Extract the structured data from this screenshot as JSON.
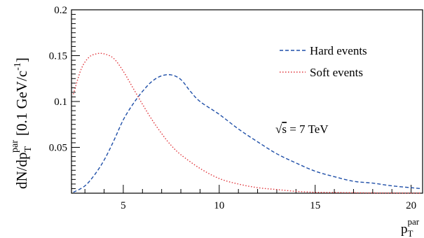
{
  "chart_data": {
    "type": "line",
    "title": "",
    "xlabel": {
      "main": "p",
      "sub": "T",
      "sup": "par"
    },
    "ylabel": {
      "prefix": "dN/dp",
      "sub": "T",
      "sup": "par",
      "units": "[0.1 GeV/c",
      "units_exp": "-1",
      "units_close": "]"
    },
    "xlim": [
      2.3,
      20.6
    ],
    "ylim": [
      0,
      0.2
    ],
    "x_ticks": [
      5,
      10,
      15,
      20
    ],
    "x_tick_labels": [
      "5",
      "10",
      "15",
      "20"
    ],
    "y_ticks": [
      0.05,
      0.1,
      0.15,
      0.2
    ],
    "y_tick_labels": [
      "0.05",
      "0.1",
      "0.15",
      "0.2"
    ],
    "grid": false,
    "legend_position": "top-right",
    "annotation": {
      "root": "√",
      "radicand": "s",
      "rest": " = 7 TeV"
    },
    "series": [
      {
        "name": "Hard events",
        "color": "#1f4fa8",
        "dash": "dashed",
        "points": [
          [
            2.4,
            0.001
          ],
          [
            3.0,
            0.008
          ],
          [
            3.5,
            0.02
          ],
          [
            4.0,
            0.036
          ],
          [
            4.5,
            0.057
          ],
          [
            5.0,
            0.08
          ],
          [
            5.5,
            0.097
          ],
          [
            6.0,
            0.111
          ],
          [
            6.5,
            0.122
          ],
          [
            7.0,
            0.128
          ],
          [
            7.5,
            0.129
          ],
          [
            8.0,
            0.124
          ],
          [
            8.5,
            0.111
          ],
          [
            9.0,
            0.1
          ],
          [
            10.0,
            0.086
          ],
          [
            11.0,
            0.07
          ],
          [
            12.0,
            0.056
          ],
          [
            13.0,
            0.043
          ],
          [
            14.0,
            0.033
          ],
          [
            15.0,
            0.024
          ],
          [
            16.0,
            0.018
          ],
          [
            17.0,
            0.013
          ],
          [
            18.0,
            0.011
          ],
          [
            19.0,
            0.008
          ],
          [
            20.0,
            0.006
          ],
          [
            20.5,
            0.005
          ]
        ]
      },
      {
        "name": "Soft events",
        "color": "#e0343a",
        "dash": "dotted",
        "points": [
          [
            2.4,
            0.108
          ],
          [
            2.8,
            0.135
          ],
          [
            3.2,
            0.148
          ],
          [
            3.6,
            0.152
          ],
          [
            4.0,
            0.152
          ],
          [
            4.5,
            0.147
          ],
          [
            5.0,
            0.133
          ],
          [
            5.5,
            0.115
          ],
          [
            6.0,
            0.097
          ],
          [
            6.5,
            0.08
          ],
          [
            7.0,
            0.065
          ],
          [
            7.5,
            0.052
          ],
          [
            8.0,
            0.042
          ],
          [
            9.0,
            0.027
          ],
          [
            10.0,
            0.016
          ],
          [
            11.0,
            0.01
          ],
          [
            12.0,
            0.006
          ],
          [
            13.0,
            0.004
          ],
          [
            14.0,
            0.002
          ],
          [
            15.0,
            0.001
          ],
          [
            16.0,
            0.0008
          ],
          [
            17.0,
            0.0005
          ],
          [
            18.0,
            0.0003
          ],
          [
            19.0,
            0.0002
          ],
          [
            20.5,
            0.0001
          ]
        ]
      }
    ]
  }
}
